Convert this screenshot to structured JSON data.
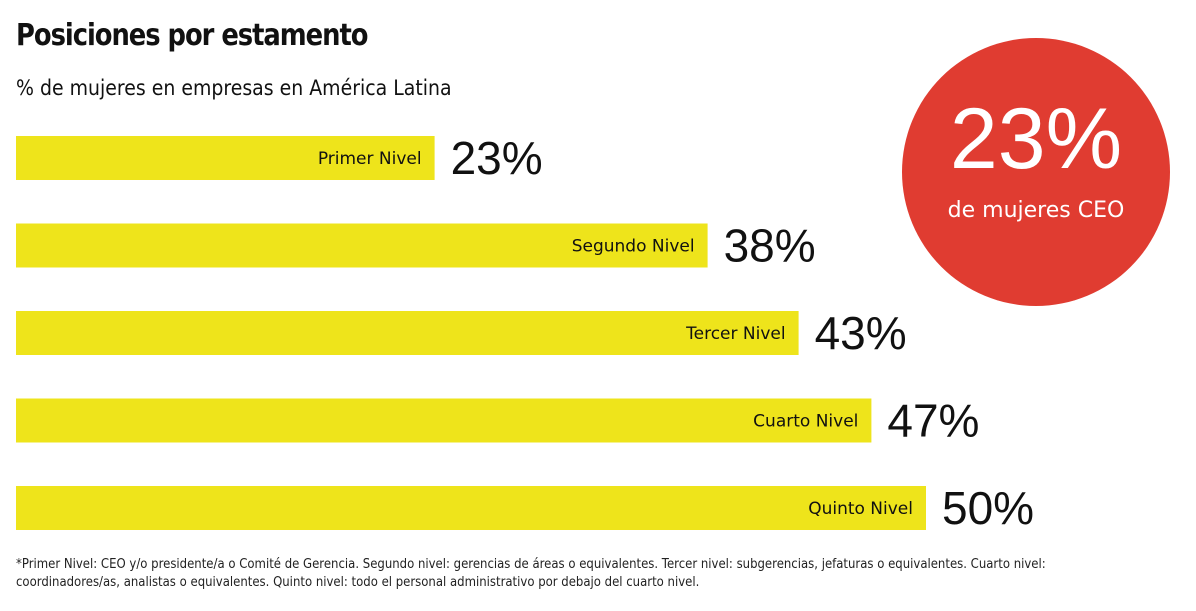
{
  "chart_data": {
    "type": "bar",
    "orientation": "horizontal",
    "title": "Posiciones por estamento",
    "subtitle": "% de mujeres en empresas en América Latina",
    "categories": [
      "Primer Nivel",
      "Segundo Nivel",
      "Tercer Nivel",
      "Cuarto Nivel",
      "Quinto Nivel"
    ],
    "values": [
      23,
      38,
      43,
      47,
      50
    ],
    "value_labels": [
      "23%",
      "38%",
      "43%",
      "47%",
      "50%"
    ],
    "bar_color": "#eee41b",
    "annotations": [
      {
        "value": "23%",
        "text": "de mujeres CEO",
        "color": "#e03c31"
      }
    ]
  },
  "footnote": "*Primer Nivel: CEO y/o presidente/a o Comité de Gerencia. Segundo nivel: gerencias de áreas o equivalentes. Tercer nivel: subgerencias, jefaturas o equivalentes. Cuarto nivel: coordinadores/as, analistas o equivalentes. Quinto nivel: todo el personal administrativo por debajo del cuarto nivel."
}
